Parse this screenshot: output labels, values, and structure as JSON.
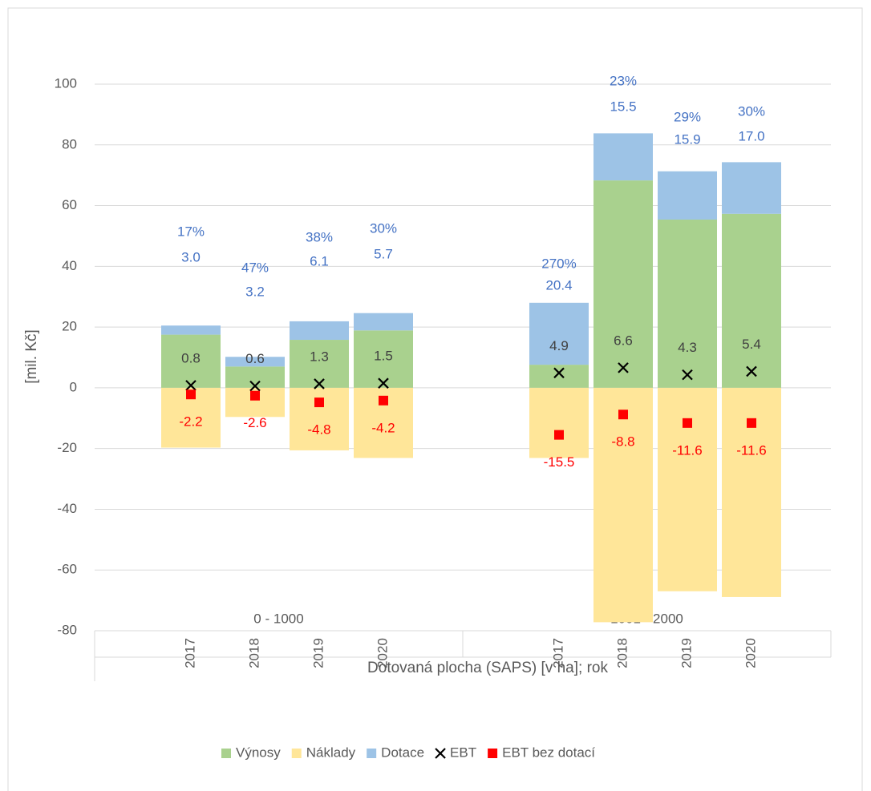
{
  "chart_data": {
    "type": "stacked_bar_markers",
    "x_axis_label": "Dotovaná plocha (SAPS) [v ha]; rok",
    "y_axis_label": "[mil. Kč]",
    "groups": [
      "0 - 1000",
      "1001 - 2000"
    ],
    "categories": [
      "2017",
      "2018",
      "2019",
      "2020",
      "2017",
      "2018",
      "2019",
      "2020"
    ],
    "ylim": [
      -80,
      100
    ],
    "yticks": [
      -80,
      -60,
      -40,
      -20,
      0,
      20,
      40,
      60,
      80,
      100
    ],
    "grid": true,
    "legend": "bottom",
    "series": [
      {
        "name": "Výnosy",
        "color": "#a9d18e",
        "kind": "bar",
        "values": [
          17.5,
          7.0,
          15.8,
          18.9,
          7.6,
          68.3,
          55.4,
          57.3
        ]
      },
      {
        "name": "Náklady",
        "color": "#ffe699",
        "kind": "bar",
        "values": [
          -19.7,
          -9.6,
          -20.6,
          -23.1,
          -23.1,
          -77.2,
          -67.0,
          -68.9
        ]
      },
      {
        "name": "Dotace",
        "color": "#9dc3e6",
        "kind": "bar",
        "stack_on": 0,
        "label_color": "#4472c4",
        "values": [
          3.0,
          3.2,
          6.1,
          5.7,
          20.4,
          15.5,
          15.9,
          17.0
        ],
        "value_labels": [
          "3.0",
          "3.2",
          "6.1",
          "5.7",
          "20.4",
          "15.5",
          "15.9",
          "17.0"
        ],
        "percent_labels": [
          "17%",
          "47%",
          "38%",
          "30%",
          "270%",
          "23%",
          "29%",
          "30%"
        ]
      },
      {
        "name": "EBT",
        "color": "#000000",
        "kind": "cross",
        "label_color": "#404040",
        "values": [
          0.8,
          0.6,
          1.3,
          1.5,
          4.9,
          6.6,
          4.3,
          5.4
        ]
      },
      {
        "name": "EBT bez dotací",
        "color": "#ff0000",
        "kind": "square",
        "label_color": "#ff0000",
        "values": [
          -2.2,
          -2.6,
          -4.8,
          -4.2,
          -15.5,
          -8.8,
          -11.6,
          -11.6
        ]
      }
    ]
  }
}
